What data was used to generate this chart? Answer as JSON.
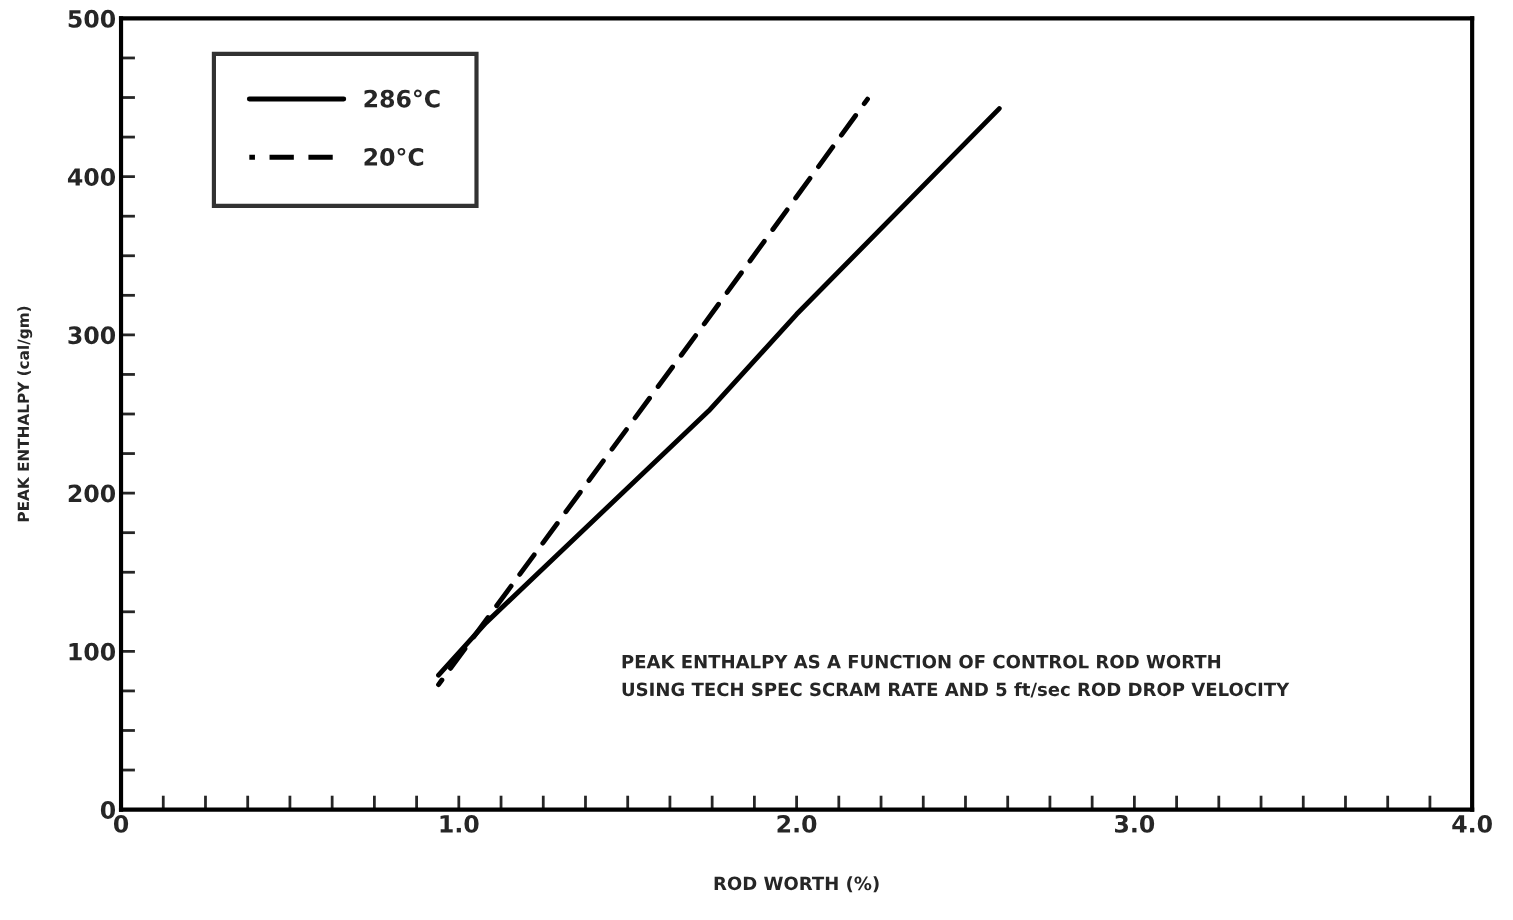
{
  "chart_data": {
    "type": "line",
    "xlabel": "ROD WORTH (%)",
    "ylabel": "PEAK ENTHALPY (cal/gm)",
    "series": [
      {
        "name": "286°C",
        "color": "#000000",
        "line_style": "solid",
        "x": [
          0.94,
          1.08,
          1.74,
          2.0,
          2.6
        ],
        "values": [
          85,
          118,
          252,
          313,
          443
        ]
      },
      {
        "name": "20°C",
        "color": "#000000",
        "line_style": "dashed",
        "x": [
          0.94,
          1.72,
          2.21
        ],
        "values": [
          79,
          305,
          449
        ]
      }
    ],
    "xlim": [
      0,
      4
    ],
    "ylim": [
      0,
      500
    ],
    "xticks": [
      {
        "value": 0,
        "label": "0"
      },
      {
        "value": 0.125,
        "label": null
      },
      {
        "value": 0.25,
        "label": null
      },
      {
        "value": 0.375,
        "label": null
      },
      {
        "value": 0.5,
        "label": null
      },
      {
        "value": 0.625,
        "label": null
      },
      {
        "value": 0.75,
        "label": null
      },
      {
        "value": 0.875,
        "label": null
      },
      {
        "value": 1,
        "label": "1.0"
      },
      {
        "value": 1.125,
        "label": null
      },
      {
        "value": 1.25,
        "label": null
      },
      {
        "value": 1.375,
        "label": null
      },
      {
        "value": 1.5,
        "label": null
      },
      {
        "value": 1.625,
        "label": null
      },
      {
        "value": 1.75,
        "label": null
      },
      {
        "value": 1.875,
        "label": null
      },
      {
        "value": 2,
        "label": "2.0"
      },
      {
        "value": 2.125,
        "label": null
      },
      {
        "value": 2.25,
        "label": null
      },
      {
        "value": 2.375,
        "label": null
      },
      {
        "value": 2.5,
        "label": null
      },
      {
        "value": 2.625,
        "label": null
      },
      {
        "value": 2.75,
        "label": null
      },
      {
        "value": 2.875,
        "label": null
      },
      {
        "value": 3,
        "label": "3.0"
      },
      {
        "value": 3.125,
        "label": null
      },
      {
        "value": 3.25,
        "label": null
      },
      {
        "value": 3.375,
        "label": null
      },
      {
        "value": 3.5,
        "label": null
      },
      {
        "value": 3.625,
        "label": null
      },
      {
        "value": 3.75,
        "label": null
      },
      {
        "value": 3.875,
        "label": null
      },
      {
        "value": 4,
        "label": "4.0"
      }
    ],
    "yticks": [
      0,
      {
        "value": 25,
        "label": null
      },
      {
        "value": 50,
        "label": null
      },
      {
        "value": 75,
        "label": null
      },
      100,
      {
        "value": 125,
        "label": null
      },
      {
        "value": 150,
        "label": null
      },
      {
        "value": 175,
        "label": null
      },
      200,
      {
        "value": 225,
        "label": null
      },
      {
        "value": 250,
        "label": null
      },
      {
        "value": 275,
        "label": null
      },
      300,
      {
        "value": 325,
        "label": null
      },
      {
        "value": 350,
        "label": null
      },
      {
        "value": 375,
        "label": null
      },
      400,
      {
        "value": 425,
        "label": null
      },
      {
        "value": 450,
        "label": null
      },
      {
        "value": 475,
        "label": null
      },
      500
    ],
    "grid": false,
    "legend": "top left",
    "annotations": [
      "PEAK ENTHALPY AS A FUNCTION OF CONTROL ROD WORTH",
      "USING TECH SPEC SCRAM RATE AND 5 ft/sec ROD DROP VELOCITY"
    ]
  }
}
